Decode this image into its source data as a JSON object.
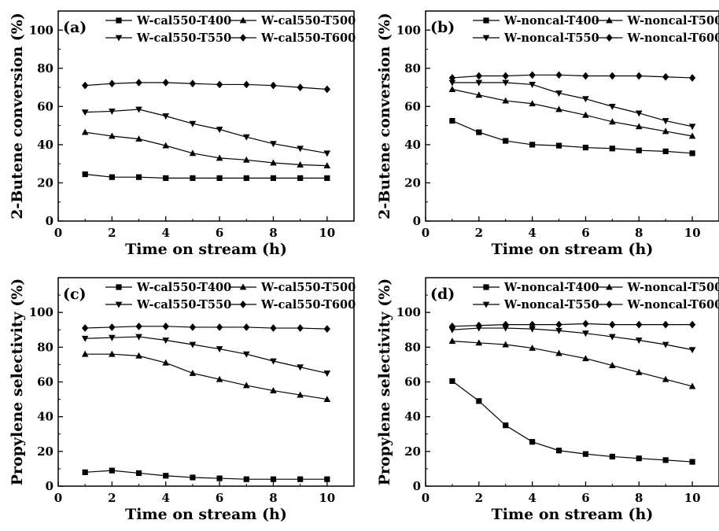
{
  "chart_data": [
    {
      "type": "line",
      "panel_label": "(a)",
      "xlabel": "Time on stream (h)",
      "ylabel": "2-Butene conversion (%)",
      "xlim": [
        0,
        11
      ],
      "ylim": [
        0,
        110
      ],
      "xticks": [
        "0",
        "2",
        "4",
        "6",
        "8",
        "10"
      ],
      "yticks": [
        "0",
        "20",
        "40",
        "60",
        "80",
        "100"
      ],
      "x": [
        1,
        2,
        3,
        4,
        5,
        6,
        7,
        8,
        9,
        10
      ],
      "legend_position": "top",
      "series": [
        {
          "name": "W-cal550-T400",
          "marker": "square",
          "values": [
            24.5,
            23,
            23,
            22.5,
            22.5,
            22.5,
            22.5,
            22.5,
            22.5,
            22.5
          ]
        },
        {
          "name": "W-cal550-T500",
          "marker": "triangle-up",
          "values": [
            46.5,
            44.5,
            43,
            39.5,
            35.5,
            33,
            32,
            30.5,
            29.5,
            29
          ]
        },
        {
          "name": "W-cal550-T550",
          "marker": "triangle-down",
          "values": [
            57,
            57.5,
            58.5,
            55,
            51,
            48,
            44,
            40.5,
            38,
            35.5
          ]
        },
        {
          "name": "W-cal550-T600",
          "marker": "diamond",
          "values": [
            71,
            72,
            72.5,
            72.5,
            72,
            71.5,
            71.5,
            71,
            70,
            69
          ]
        }
      ]
    },
    {
      "type": "line",
      "panel_label": "(b)",
      "xlabel": "Time on stream (h)",
      "ylabel": "2-Butene conversion (%)",
      "xlim": [
        0,
        11
      ],
      "ylim": [
        0,
        110
      ],
      "xticks": [
        "0",
        "2",
        "4",
        "6",
        "8",
        "10"
      ],
      "yticks": [
        "0",
        "20",
        "40",
        "60",
        "80",
        "100"
      ],
      "x": [
        1,
        2,
        3,
        4,
        5,
        6,
        7,
        8,
        9,
        10
      ],
      "legend_position": "top",
      "series": [
        {
          "name": "W-noncal-T400",
          "marker": "square",
          "values": [
            52.5,
            46.5,
            42,
            40,
            39.5,
            38.5,
            38,
            37,
            36.5,
            35.5
          ]
        },
        {
          "name": "W-noncal-T500",
          "marker": "triangle-up",
          "values": [
            69,
            66,
            63,
            61.5,
            58.5,
            55.5,
            52,
            49.5,
            47,
            44.5
          ]
        },
        {
          "name": "W-noncal-T550",
          "marker": "triangle-down",
          "values": [
            72.5,
            72.5,
            72.5,
            71.5,
            67,
            64,
            60,
            56.5,
            52.5,
            49.5
          ]
        },
        {
          "name": "W-noncal-T600",
          "marker": "diamond",
          "values": [
            75,
            76,
            76,
            76.5,
            76.5,
            76,
            76,
            76,
            75.5,
            75
          ]
        }
      ]
    },
    {
      "type": "line",
      "panel_label": "(c)",
      "xlabel": "Time on stream (h)",
      "ylabel": "Propylene selectivity (%)",
      "xlim": [
        0,
        11
      ],
      "ylim": [
        0,
        120
      ],
      "xticks": [
        "0",
        "2",
        "4",
        "6",
        "8",
        "10"
      ],
      "yticks": [
        "0",
        "20",
        "40",
        "60",
        "80",
        "100"
      ],
      "x": [
        1,
        2,
        3,
        4,
        5,
        6,
        7,
        8,
        9,
        10
      ],
      "legend_position": "top",
      "series": [
        {
          "name": "W-cal550-T400",
          "marker": "square",
          "values": [
            8,
            9,
            7.5,
            6,
            5,
            4.5,
            4,
            4,
            4,
            4
          ]
        },
        {
          "name": "W-cal550-T500",
          "marker": "triangle-up",
          "values": [
            76,
            76,
            75,
            71,
            65,
            61.5,
            58,
            55,
            52.5,
            50
          ]
        },
        {
          "name": "W-cal550-T550",
          "marker": "triangle-down",
          "values": [
            85,
            85.5,
            86,
            84,
            81.5,
            79,
            76,
            72,
            68.5,
            65
          ]
        },
        {
          "name": "W-cal550-T600",
          "marker": "diamond",
          "values": [
            91,
            91.5,
            92,
            92,
            91.5,
            91.5,
            91.5,
            91,
            91,
            90.5
          ]
        }
      ]
    },
    {
      "type": "line",
      "panel_label": "(d)",
      "xlabel": "Time on stream (h)",
      "ylabel": "Propylene selectivity (%)",
      "xlim": [
        0,
        11
      ],
      "ylim": [
        0,
        120
      ],
      "xticks": [
        "0",
        "2",
        "4",
        "6",
        "8",
        "10"
      ],
      "yticks": [
        "0",
        "20",
        "40",
        "60",
        "80",
        "100"
      ],
      "x": [
        1,
        2,
        3,
        4,
        5,
        6,
        7,
        8,
        9,
        10
      ],
      "legend_position": "top",
      "series": [
        {
          "name": "W-noncal-T400",
          "marker": "square",
          "values": [
            60.5,
            49,
            35,
            25.5,
            20.5,
            18.5,
            17,
            16,
            15,
            14
          ]
        },
        {
          "name": "W-noncal-T500",
          "marker": "triangle-up",
          "values": [
            83.5,
            82.5,
            81.5,
            79.5,
            76.5,
            73.5,
            69.5,
            65.5,
            61.5,
            57.5
          ]
        },
        {
          "name": "W-noncal-T550",
          "marker": "triangle-down",
          "values": [
            90,
            91,
            91,
            90.5,
            89.5,
            88,
            86,
            84,
            81.5,
            78.5
          ]
        },
        {
          "name": "W-noncal-T600",
          "marker": "diamond",
          "values": [
            92,
            92.5,
            93,
            93,
            93,
            93.5,
            93,
            93,
            93,
            93
          ]
        }
      ]
    }
  ]
}
